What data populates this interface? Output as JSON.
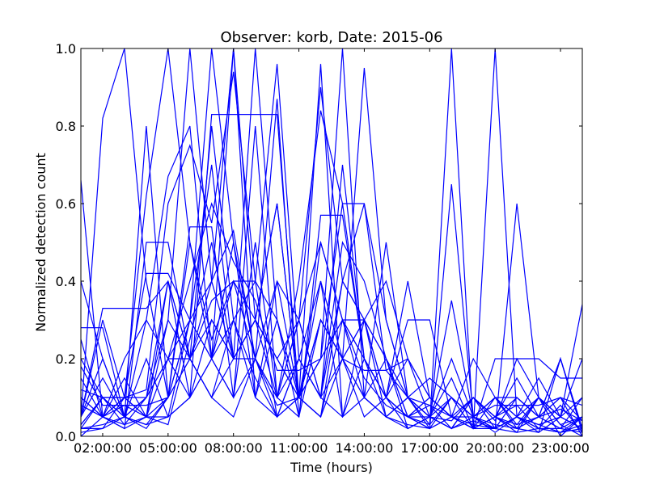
{
  "chart_data": {
    "type": "line",
    "title": "Observer: korb, Date: 2015-06",
    "xlabel": "Time (hours)",
    "ylabel": "Normalized detection count",
    "xlim": [
      1,
      24
    ],
    "ylim": [
      0,
      1
    ],
    "x_ticks": [
      {
        "value": 2,
        "label": "02:00:00"
      },
      {
        "value": 5,
        "label": "05:00:00"
      },
      {
        "value": 8,
        "label": "08:00:00"
      },
      {
        "value": 11,
        "label": "11:00:00"
      },
      {
        "value": 14,
        "label": "14:00:00"
      },
      {
        "value": 17,
        "label": "17:00:00"
      },
      {
        "value": 20,
        "label": "20:00:00"
      },
      {
        "value": 23,
        "label": "23:00:00"
      }
    ],
    "y_ticks": [
      {
        "value": 0.0,
        "label": "0.0"
      },
      {
        "value": 0.2,
        "label": "0.2"
      },
      {
        "value": 0.4,
        "label": "0.4"
      },
      {
        "value": 0.6,
        "label": "0.6"
      },
      {
        "value": 0.8,
        "label": "0.8"
      },
      {
        "value": 1.0,
        "label": "1.0"
      }
    ],
    "grid": false,
    "legend": "none",
    "line_color": "#0000ff",
    "x": [
      1,
      2,
      3,
      4,
      5,
      6,
      7,
      8,
      9,
      10,
      11,
      12,
      13,
      14,
      15,
      16,
      17,
      18,
      19,
      20,
      21,
      22,
      23,
      24
    ],
    "series": [
      {
        "values": [
          0.66,
          0.05,
          0.1,
          0.12,
          0.6,
          0.75,
          0.55,
          0.94,
          0.4,
          0.3,
          0.1,
          0.96,
          0.05,
          0.2,
          0.1,
          0.05,
          0.08,
          0.02,
          0.1,
          0.05,
          0.03,
          0.1,
          0.05,
          0.02
        ]
      },
      {
        "values": [
          0.05,
          0.82,
          1.0,
          0.4,
          0.1,
          0.2,
          0.8,
          0.3,
          0.1,
          0.05,
          0.2,
          0.1,
          0.4,
          0.3,
          0.1,
          0.05,
          0.02,
          0.1,
          0.05,
          0.01,
          0.05,
          0.02,
          0.08,
          0.01
        ]
      },
      {
        "values": [
          0.4,
          0.2,
          0.05,
          0.8,
          0.1,
          0.3,
          0.7,
          0.2,
          1.0,
          0.3,
          0.1,
          0.05,
          0.3,
          0.2,
          0.05,
          0.1,
          0.08,
          0.05,
          0.02,
          0.1,
          0.05,
          0.03,
          0.01,
          0.05
        ]
      },
      {
        "values": [
          0.2,
          0.1,
          0.1,
          0.62,
          1.0,
          0.5,
          0.2,
          0.3,
          0.4,
          0.96,
          0.2,
          0.1,
          0.7,
          0.2,
          0.1,
          0.2,
          0.05,
          0.02,
          0.04,
          0.02,
          0.1,
          0.05,
          0.2,
          0.01
        ]
      },
      {
        "values": [
          0.05,
          0.3,
          0.1,
          0.05,
          0.3,
          1.0,
          0.4,
          0.2,
          0.3,
          0.6,
          0.1,
          0.05,
          0.4,
          0.6,
          0.3,
          0.1,
          0.05,
          0.02,
          0.1,
          0.04,
          0.2,
          0.1,
          0.05,
          0.2
        ]
      },
      {
        "values": [
          0.1,
          0.05,
          0.2,
          0.3,
          0.67,
          0.8,
          0.2,
          1.0,
          0.1,
          0.4,
          0.1,
          0.2,
          0.3,
          0.1,
          0.2,
          0.05,
          0.02,
          0.65,
          0.05,
          0.03,
          0.02,
          0.05,
          0.02,
          0.01
        ]
      },
      {
        "values": [
          0.03,
          0.1,
          0.05,
          0.1,
          0.2,
          0.3,
          1.0,
          0.5,
          0.2,
          0.87,
          0.05,
          0.3,
          0.2,
          0.1,
          0.05,
          0.1,
          0.03,
          1.0,
          0.02,
          0.05,
          0.01,
          0.1,
          0.03,
          0.05
        ]
      },
      {
        "values": [
          0.15,
          0.05,
          0.03,
          0.1,
          0.4,
          0.2,
          0.4,
          1.0,
          0.3,
          0.1,
          0.4,
          0.84,
          0.6,
          0.2,
          0.1,
          0.05,
          0.1,
          0.05,
          0.02,
          1.0,
          0.05,
          0.02,
          0.01,
          0.03
        ]
      },
      {
        "values": [
          0.28,
          0.28,
          0.05,
          0.02,
          0.1,
          0.54,
          0.54,
          0.1,
          0.8,
          0.1,
          0.3,
          0.9,
          0.4,
          0.3,
          0.05,
          0.02,
          0.05,
          0.1,
          0.05,
          0.02,
          0.6,
          0.1,
          0.05,
          0.02
        ]
      },
      {
        "values": [
          0.1,
          0.05,
          0.02,
          0.5,
          0.5,
          0.2,
          0.3,
          0.2,
          0.3,
          0.2,
          0.1,
          0.2,
          1.0,
          0.1,
          0.05,
          0.03,
          0.02,
          0.05,
          0.2,
          0.1,
          0.05,
          0.15,
          0.05,
          0.1
        ]
      },
      {
        "values": [
          0.02,
          0.1,
          0.05,
          0.03,
          0.05,
          0.1,
          0.83,
          0.83,
          0.83,
          0.83,
          0.1,
          0.05,
          0.2,
          0.95,
          0.3,
          0.1,
          0.05,
          0.02,
          0.1,
          0.05,
          0.02,
          0.01,
          0.05,
          0.34
        ]
      },
      {
        "values": [
          0.05,
          0.33,
          0.33,
          0.33,
          0.4,
          0.2,
          0.1,
          0.05,
          0.2,
          0.1,
          0.3,
          0.1,
          0.2,
          0.3,
          0.1,
          0.4,
          0.1,
          0.05,
          0.02,
          0.2,
          0.2,
          0.2,
          0.15,
          0.15
        ]
      },
      {
        "values": [
          0.08,
          0.05,
          0.1,
          0.42,
          0.42,
          0.3,
          0.2,
          0.1,
          0.5,
          0.1,
          0.05,
          0.57,
          0.57,
          0.2,
          0.1,
          0.3,
          0.3,
          0.05,
          0.02,
          0.05,
          0.1,
          0.05,
          0.02,
          0.1
        ]
      },
      {
        "values": [
          0.12,
          0.1,
          0.1,
          0.1,
          0.2,
          0.4,
          0.6,
          0.45,
          0.35,
          0.17,
          0.17,
          0.2,
          0.6,
          0.6,
          0.17,
          0.1,
          0.05,
          0.02,
          0.05,
          0.08,
          0.08,
          0.08,
          0.1,
          0.04
        ]
      },
      {
        "values": [
          0.0,
          0.05,
          0.15,
          0.05,
          0.1,
          0.3,
          0.2,
          0.4,
          0.4,
          0.05,
          0.1,
          0.3,
          0.2,
          0.17,
          0.17,
          0.2,
          0.1,
          0.05,
          0.03,
          0.02,
          0.05,
          0.1,
          0.0,
          0.05
        ]
      },
      {
        "values": [
          0.05,
          0.2,
          0.05,
          0.3,
          0.2,
          0.1,
          0.2,
          0.5,
          0.1,
          0.3,
          0.05,
          0.5,
          0.3,
          0.3,
          0.4,
          0.2,
          0.1,
          0.05,
          0.02,
          0.02,
          0.05,
          0.01,
          0.2,
          0.02
        ]
      },
      {
        "values": [
          0.02,
          0.03,
          0.05,
          0.2,
          0.05,
          0.1,
          0.3,
          0.2,
          0.2,
          0.1,
          0.2,
          0.1,
          0.05,
          0.3,
          0.2,
          0.1,
          0.05,
          0.2,
          0.05,
          0.1,
          0.1,
          0.05,
          0.1,
          0.0
        ]
      },
      {
        "values": [
          0.03,
          0.1,
          0.03,
          0.05,
          0.03,
          0.25,
          0.5,
          0.2,
          0.3,
          0.6,
          0.1,
          0.3,
          0.2,
          0.05,
          0.1,
          0.02,
          0.05,
          0.04,
          0.1,
          0.02,
          0.05,
          0.03,
          0.05,
          0.02
        ]
      },
      {
        "values": [
          0.08,
          0.05,
          0.08,
          0.05,
          0.2,
          0.2,
          0.1,
          0.3,
          0.15,
          0.05,
          0.2,
          0.4,
          0.05,
          0.1,
          0.05,
          0.1,
          0.15,
          0.1,
          0.05,
          0.1,
          0.02,
          0.05,
          0.07,
          0.04
        ]
      },
      {
        "values": [
          0.01,
          0.02,
          0.05,
          0.03,
          0.1,
          0.2,
          0.35,
          0.4,
          0.3,
          0.2,
          0.3,
          0.5,
          0.3,
          0.2,
          0.1,
          0.05,
          0.1,
          0.05,
          0.05,
          0.02,
          0.01,
          0.02,
          0.01,
          0.02
        ]
      },
      {
        "values": [
          0.18,
          0.08,
          0.08,
          0.08,
          0.1,
          0.5,
          0.25,
          0.4,
          0.2,
          0.08,
          0.1,
          0.2,
          0.3,
          0.15,
          0.08,
          0.05,
          0.05,
          0.15,
          0.02,
          0.05,
          0.15,
          0.05,
          0.1,
          0.08
        ]
      },
      {
        "values": [
          0.02,
          0.02,
          0.1,
          0.05,
          0.05,
          0.3,
          0.4,
          0.53,
          0.2,
          0.4,
          0.3,
          0.1,
          0.5,
          0.4,
          0.2,
          0.05,
          0.03,
          0.1,
          0.02,
          0.05,
          0.08,
          0.02,
          0.02,
          0.05
        ]
      },
      {
        "values": [
          0.25,
          0.05,
          0.02,
          0.05,
          0.4,
          0.1,
          0.2,
          0.1,
          0.2,
          0.05,
          0.1,
          0.4,
          0.2,
          0.3,
          0.2,
          0.02,
          0.05,
          0.35,
          0.05,
          0.1,
          0.03,
          0.05,
          0.2,
          0.02
        ]
      },
      {
        "values": [
          0.05,
          0.15,
          0.05,
          0.1,
          0.3,
          0.2,
          0.1,
          0.2,
          0.3,
          0.2,
          0.1,
          0.3,
          0.2,
          0.1,
          0.5,
          0.1,
          0.02,
          0.05,
          0.1,
          0.05,
          0.02,
          0.1,
          0.03,
          0.0
        ]
      }
    ]
  }
}
